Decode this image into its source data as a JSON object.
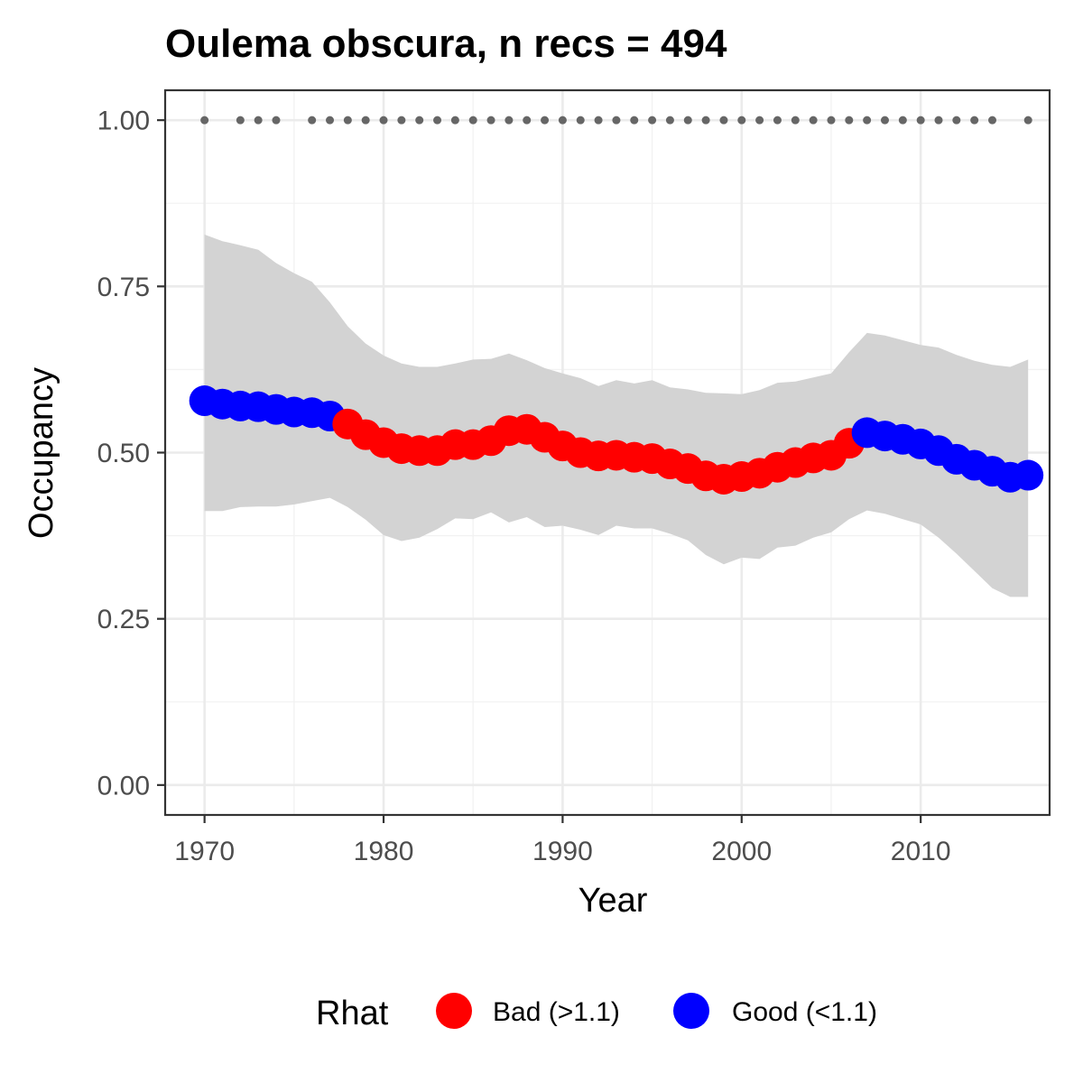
{
  "chart_data": {
    "type": "line",
    "title": "Oulema obscura, n recs = 494",
    "xlabel": "Year",
    "ylabel": "Occupancy",
    "xlim": [
      1967.8,
      2017.2
    ],
    "ylim": [
      -0.045,
      1.045
    ],
    "x_ticks": [
      1970,
      1980,
      1990,
      2000,
      2010
    ],
    "x_tick_labels": [
      "1970",
      "1980",
      "1990",
      "2000",
      "2010"
    ],
    "y_ticks": [
      0,
      0.25,
      0.5,
      0.75,
      1
    ],
    "y_tick_labels": [
      "0.00",
      "0.25",
      "0.50",
      "0.75",
      "1.00"
    ],
    "grid": true,
    "legend": {
      "title": "Rhat",
      "position": "bottom",
      "entries": [
        {
          "label": "Bad (>1.1)",
          "color": "#ff0000"
        },
        {
          "label": "Good (<1.1)",
          "color": "#0000ff"
        }
      ]
    },
    "colors": {
      "bad": "#ff0000",
      "good": "#0000ff",
      "ribbon": "#d3d3d3",
      "record_dots": "#666666",
      "panel_border": "#333333",
      "grid_major": "#ebebeb",
      "grid_minor": "#f2f2f2"
    },
    "series": [
      {
        "x": [
          1970,
          1971,
          1972,
          1973,
          1974,
          1975,
          1976,
          1977,
          1978,
          1979,
          1980,
          1981,
          1982,
          1983,
          1984,
          1985,
          1986,
          1987,
          1988,
          1989,
          1990,
          1991,
          1992,
          1993,
          1994,
          1995,
          1996,
          1997,
          1998,
          1999,
          2000,
          2001,
          2002,
          2003,
          2004,
          2005,
          2006,
          2007,
          2008,
          2009,
          2010,
          2011,
          2012,
          2013,
          2014,
          2015,
          2016
        ],
        "mean": [
          0.578,
          0.573,
          0.57,
          0.569,
          0.565,
          0.561,
          0.56,
          0.555,
          0.543,
          0.527,
          0.515,
          0.506,
          0.503,
          0.503,
          0.512,
          0.512,
          0.518,
          0.533,
          0.535,
          0.523,
          0.51,
          0.5,
          0.495,
          0.496,
          0.493,
          0.491,
          0.483,
          0.476,
          0.465,
          0.46,
          0.464,
          0.469,
          0.478,
          0.485,
          0.492,
          0.496,
          0.514,
          0.53,
          0.525,
          0.52,
          0.513,
          0.503,
          0.49,
          0.481,
          0.472,
          0.463,
          0.466
        ],
        "lower": [
          0.412,
          0.412,
          0.418,
          0.419,
          0.419,
          0.422,
          0.427,
          0.432,
          0.418,
          0.399,
          0.376,
          0.367,
          0.372,
          0.385,
          0.401,
          0.4,
          0.41,
          0.395,
          0.403,
          0.388,
          0.39,
          0.384,
          0.376,
          0.39,
          0.386,
          0.386,
          0.378,
          0.368,
          0.346,
          0.332,
          0.342,
          0.34,
          0.357,
          0.36,
          0.372,
          0.38,
          0.4,
          0.413,
          0.408,
          0.4,
          0.392,
          0.372,
          0.348,
          0.322,
          0.296,
          0.283,
          0.283
        ],
        "upper": [
          0.828,
          0.818,
          0.812,
          0.805,
          0.785,
          0.77,
          0.757,
          0.726,
          0.69,
          0.664,
          0.646,
          0.634,
          0.629,
          0.629,
          0.634,
          0.64,
          0.641,
          0.649,
          0.639,
          0.627,
          0.619,
          0.612,
          0.6,
          0.609,
          0.604,
          0.609,
          0.598,
          0.595,
          0.59,
          0.589,
          0.588,
          0.594,
          0.605,
          0.607,
          0.613,
          0.619,
          0.651,
          0.68,
          0.676,
          0.669,
          0.662,
          0.658,
          0.647,
          0.638,
          0.632,
          0.629,
          0.64
        ],
        "rhat": [
          "good",
          "good",
          "good",
          "good",
          "good",
          "good",
          "good",
          "good",
          "bad",
          "bad",
          "bad",
          "bad",
          "bad",
          "bad",
          "bad",
          "bad",
          "bad",
          "bad",
          "bad",
          "bad",
          "bad",
          "bad",
          "bad",
          "bad",
          "bad",
          "bad",
          "bad",
          "bad",
          "bad",
          "bad",
          "bad",
          "bad",
          "bad",
          "bad",
          "bad",
          "bad",
          "bad",
          "good",
          "good",
          "good",
          "good",
          "good",
          "good",
          "good",
          "good",
          "good",
          "good"
        ]
      }
    ],
    "record_years": [
      1970,
      1972,
      1973,
      1974,
      1976,
      1977,
      1978,
      1979,
      1980,
      1981,
      1982,
      1983,
      1984,
      1985,
      1986,
      1987,
      1988,
      1989,
      1990,
      1991,
      1992,
      1993,
      1994,
      1995,
      1996,
      1997,
      1998,
      1999,
      2000,
      2001,
      2002,
      2003,
      2004,
      2005,
      2006,
      2007,
      2008,
      2009,
      2010,
      2011,
      2012,
      2013,
      2014,
      2016
    ],
    "record_value": 1.0
  }
}
